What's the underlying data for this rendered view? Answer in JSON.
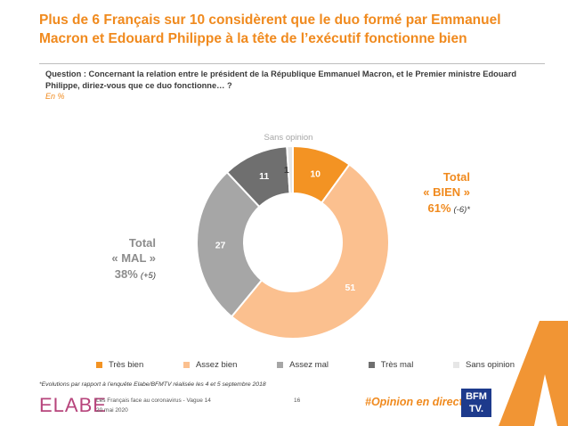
{
  "title": "Plus de 6 Français sur 10 considèrent que le duo formé par Emmanuel Macron et Edouard Philippe à la tête de l’exécutif fonctionne bien",
  "question": "Question : Concernant la relation entre le président de la République Emmanuel Macron, et le Premier ministre Edouard Philippe, diriez-vous que ce duo fonctionne… ?",
  "unit": "En %",
  "chart_data": {
    "type": "pie",
    "style": "donut",
    "categories": [
      "Très bien",
      "Assez bien",
      "Assez mal",
      "Très mal",
      "Sans opinion"
    ],
    "values": [
      10,
      51,
      27,
      11,
      1
    ],
    "colors": [
      "#f39323",
      "#fbc08f",
      "#a6a6a6",
      "#6f6f6f",
      "#e6e6e6"
    ],
    "data_labels": [
      "10",
      "51",
      "27",
      "11",
      "1"
    ],
    "callout": "Sans opinion",
    "legend_position": "bottom"
  },
  "totals": {
    "bien": {
      "line1": "Total",
      "line2": "« BIEN »",
      "value": "61%",
      "change": "(-6)*"
    },
    "mal": {
      "line1": "Total",
      "line2": "« MAL »",
      "value": "38%",
      "change": "(+5)"
    }
  },
  "footnote": "*Evolutions par rapport à l’enquête Elabe/BFMTV réalisée les 4 et 5 septembre 2018",
  "footer": {
    "logo": "ELABE",
    "survey_title": "Les Français face au coronavirus - Vague 14",
    "date": "20 mai 2020",
    "page": "16",
    "hashtag": "#Opinion en direct",
    "partner_line1": "BFM",
    "partner_line2": "TV."
  }
}
